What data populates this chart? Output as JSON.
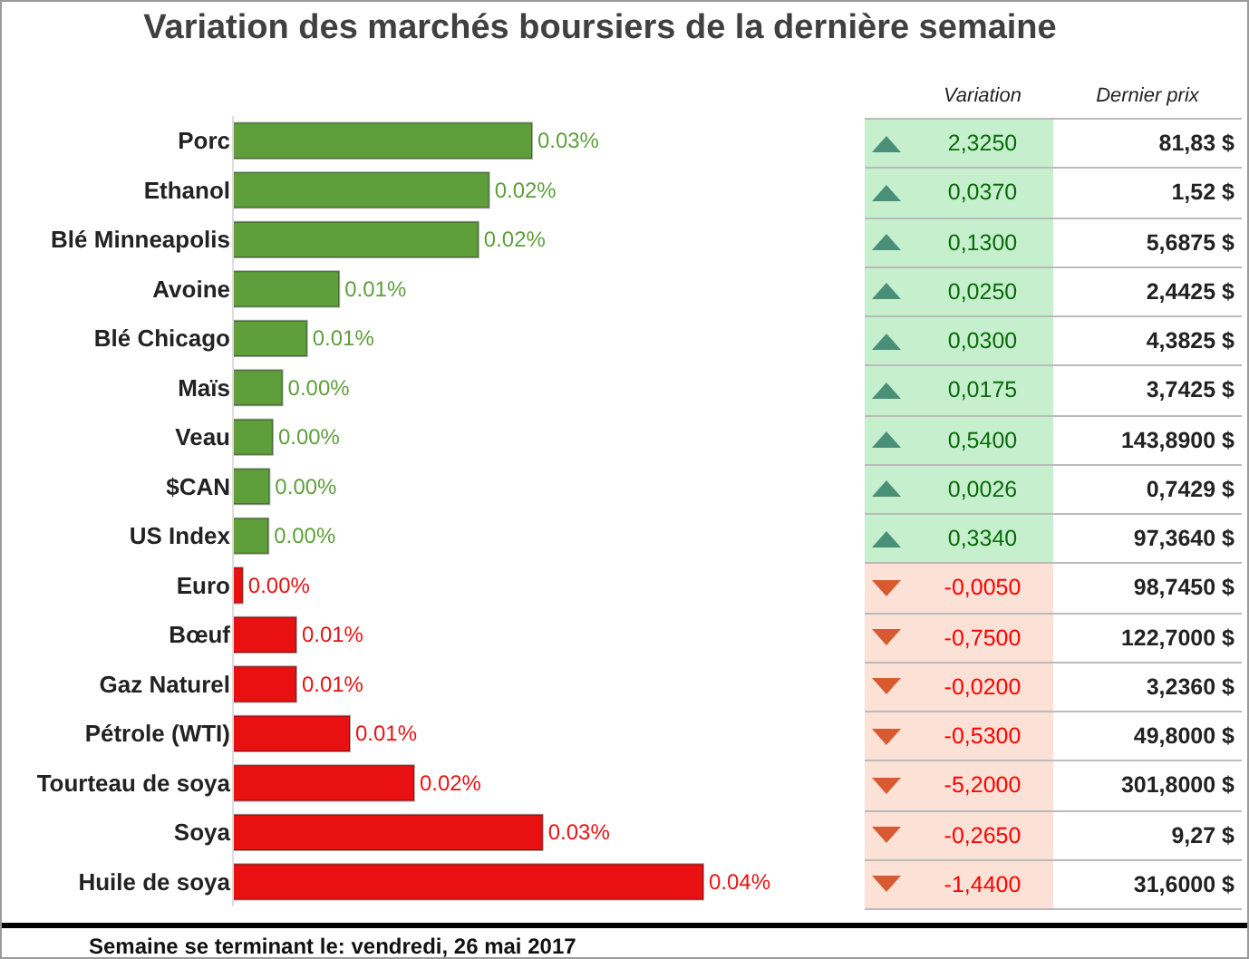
{
  "chart_data": [
    {
      "type": "bar",
      "orientation": "horizontal",
      "title": "Variation des marchés boursiers de la dernière semaine",
      "categories": [
        "Porc",
        "Ethanol",
        "Blé Minneapolis",
        "Avoine",
        "Blé Chicago",
        "Maïs",
        "Veau",
        "$CAN",
        "US Index",
        "Euro",
        "Bœuf",
        "Gaz Naturel",
        "Pétrole (WTI)",
        "Tourteau de soya",
        "Soya",
        "Huile de soya"
      ],
      "values": [
        0.028,
        0.024,
        0.023,
        0.01,
        0.007,
        0.0047,
        0.0038,
        0.0035,
        0.0034,
        0.001,
        0.006,
        0.006,
        0.011,
        0.017,
        0.029,
        0.044
      ],
      "value_labels": [
        "0.03%",
        "0.02%",
        "0.02%",
        "0.01%",
        "0.01%",
        "0.00%",
        "0.00%",
        "0.00%",
        "0.00%",
        "0.00%",
        "0.01%",
        "0.01%",
        "0.01%",
        "0.02%",
        "0.03%",
        "0.04%"
      ],
      "colors": [
        "#5e9e3b",
        "#5e9e3b",
        "#5e9e3b",
        "#5e9e3b",
        "#5e9e3b",
        "#5e9e3b",
        "#5e9e3b",
        "#5e9e3b",
        "#5e9e3b",
        "#e81010",
        "#e81010",
        "#e81010",
        "#e81010",
        "#e81010",
        "#e81010",
        "#e81010"
      ],
      "annotations": [
        "Semaine se terminant le:  vendredi, 26 mai 2017"
      ]
    },
    {
      "type": "other",
      "categories": [
        "Variation",
        "Dernier prix"
      ],
      "colors": [
        "#c6efce",
        "#c6efce",
        "#c6efce",
        "#c6efce",
        "#c6efce",
        "#c6efce",
        "#c6efce",
        "#c6efce",
        "#c6efce",
        "#fbe1d6",
        "#fbe1d6",
        "#fbe1d6",
        "#fbe1d6",
        "#fbe1d6",
        "#fbe1d6",
        "#fbe1d6"
      ],
      "cell_labels": [
        [
          "2,3250",
          "81,83 $"
        ],
        [
          "0,0370",
          "1,52 $"
        ],
        [
          "0,1300",
          "5,6875 $"
        ],
        [
          "0,0250",
          "2,4425 $"
        ],
        [
          "0,0300",
          "4,3825 $"
        ],
        [
          "0,0175",
          "3,7425 $"
        ],
        [
          "0,5400",
          "143,8900 $"
        ],
        [
          "0,0026",
          "0,7429 $"
        ],
        [
          "0,3340",
          "97,3640 $"
        ],
        [
          "-0,0050",
          "98,7450 $"
        ],
        [
          "-0,7500",
          "122,7000 $"
        ],
        [
          "-0,0200",
          "3,2360 $"
        ],
        [
          "-0,5300",
          "49,8000 $"
        ],
        [
          "-5,2000",
          "301,8000 $"
        ],
        [
          "-0,2650",
          "9,27 $"
        ],
        [
          "-1,4400",
          "31,6000 $"
        ]
      ]
    }
  ]
}
